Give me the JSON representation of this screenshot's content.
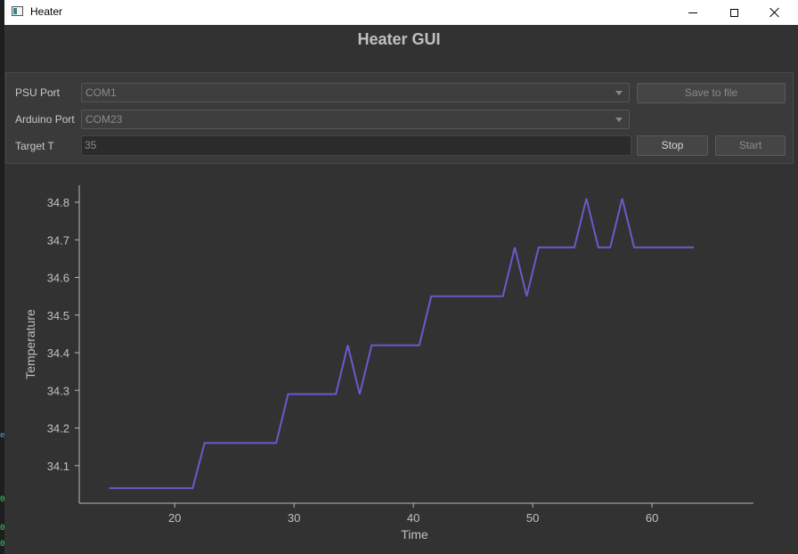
{
  "window": {
    "title": "Heater"
  },
  "app": {
    "title": "Heater GUI"
  },
  "controls": {
    "psu_label": "PSU Port",
    "psu_value": "COM1",
    "arduino_label": "Arduino Port",
    "arduino_value": "COM23",
    "target_label": "Target T",
    "target_value": "35",
    "save_label": "Save to file",
    "stop_label": "Stop",
    "start_label": "Start"
  },
  "left_strip": [
    "e",
    "0",
    "0",
    "0"
  ],
  "chart_data": {
    "type": "line",
    "xlabel": "Time",
    "ylabel": "Temperature",
    "xlim": [
      12,
      68.5
    ],
    "ylim": [
      34.0,
      34.845
    ],
    "xticks": [
      20,
      30,
      40,
      50,
      60
    ],
    "yticks": [
      34.1,
      34.2,
      34.3,
      34.4,
      34.5,
      34.6,
      34.7,
      34.8
    ],
    "ytick_labels": [
      "34.1",
      "34.2",
      "34.3",
      "34.4",
      "34.5",
      "34.6",
      "34.7",
      "34.8"
    ],
    "grid": false,
    "line_color": "#6a5acd",
    "x": [
      14.5,
      21.5,
      22.5,
      28.5,
      29.5,
      33.5,
      34.5,
      35.5,
      36.5,
      40.5,
      41.5,
      47.5,
      48.5,
      49.5,
      50.5,
      53.5,
      54.5,
      55.5,
      56.5,
      57.5,
      58.5,
      63.5
    ],
    "y": [
      34.04,
      34.04,
      34.16,
      34.16,
      34.29,
      34.29,
      34.42,
      34.29,
      34.42,
      34.42,
      34.55,
      34.55,
      34.68,
      34.55,
      34.68,
      34.68,
      34.81,
      34.68,
      34.68,
      34.81,
      34.68,
      34.68
    ]
  }
}
